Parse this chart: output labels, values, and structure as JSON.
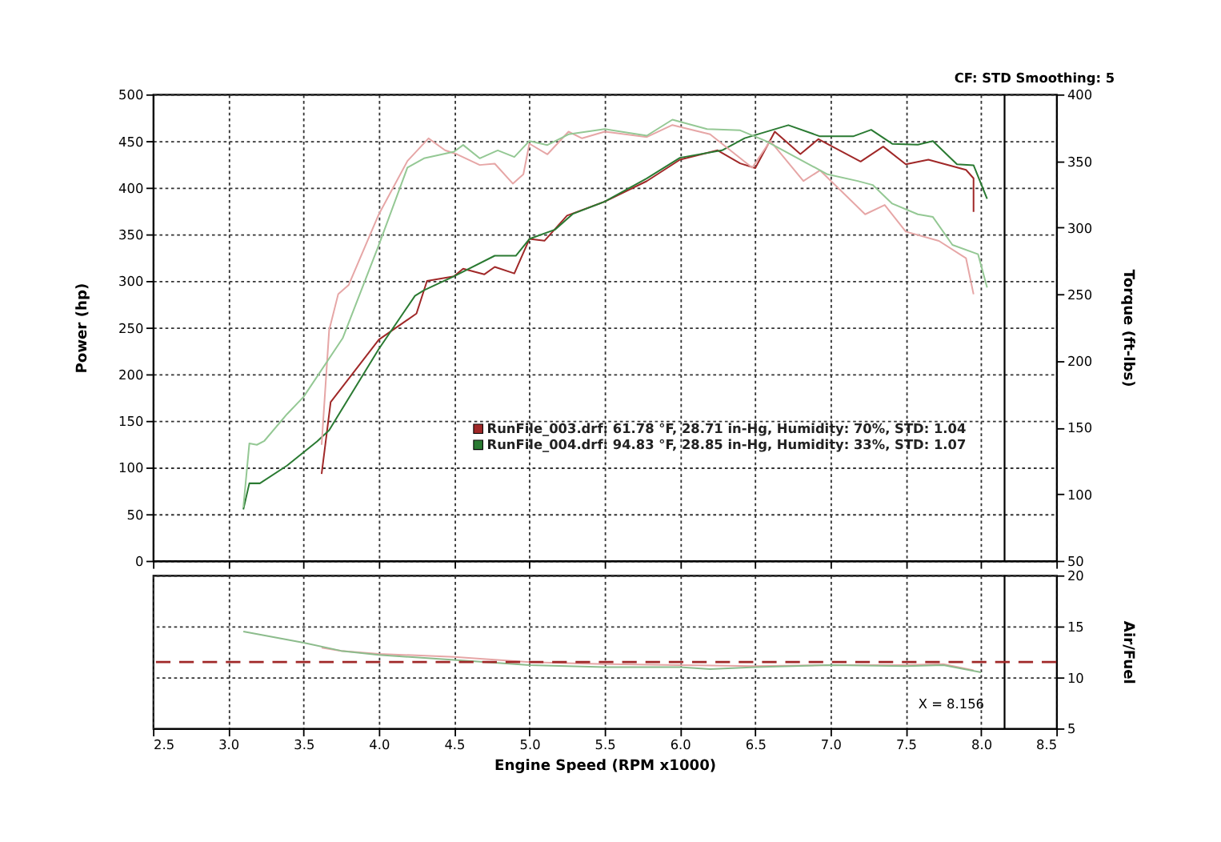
{
  "chart_data": [
    {
      "type": "line",
      "ylabel": "Power (hp)",
      "y2label": "Torque (ft-lbs)",
      "annotations": [
        "CF: STD  Smoothing: 5"
      ],
      "xlim": [
        2.5,
        8.5
      ],
      "xticks": [
        2.5,
        3,
        3.5,
        4,
        4.5,
        5,
        5.5,
        6,
        6.5,
        7,
        7.5,
        8,
        8.5
      ],
      "ylim": [
        0,
        500
      ],
      "yticks": [
        0,
        50,
        100,
        150,
        200,
        250,
        300,
        350,
        400,
        450,
        500
      ],
      "y2lim": [
        50,
        400
      ],
      "y2ticks": [
        50,
        100,
        150,
        200,
        250,
        300,
        350,
        400
      ],
      "tick_labels": "y",
      "grid": true,
      "legend": "bottom",
      "line_style": "solid",
      "series": [
        {
          "name": "RunFile_003.drf: 61.78 °F, 28.71 in-Hg, Humidity: 70%, STD: 1.04",
          "color": "#a02828",
          "x": [
            3.62,
            3.68,
            4.0,
            4.25,
            4.32,
            4.5,
            4.56,
            4.7,
            4.77,
            4.9,
            5.0,
            5.1,
            5.25,
            5.5,
            5.78,
            6.0,
            6.25,
            6.4,
            6.5,
            6.63,
            6.8,
            6.92,
            7.2,
            7.35,
            7.5,
            7.65,
            7.9,
            7.95,
            7.95
          ],
          "values": [
            93,
            170,
            237,
            265,
            300,
            305,
            313,
            307,
            315,
            308,
            345,
            343,
            370,
            385,
            407,
            430,
            440,
            426,
            421,
            460,
            436,
            452,
            428,
            444,
            425,
            430,
            419,
            410,
            374
          ]
        },
        {
          "name": "RunFile_004.drf: 94.83 °F, 28.85 in-Hg, Humidity: 33%, STD: 1.07",
          "color": "#2a7a32",
          "x": [
            3.1,
            3.14,
            3.21,
            3.39,
            3.59,
            3.67,
            4.0,
            4.24,
            4.3,
            4.5,
            4.77,
            4.91,
            5.0,
            5.17,
            5.29,
            5.5,
            5.78,
            6.0,
            6.28,
            6.43,
            6.72,
            6.93,
            7.15,
            7.27,
            7.41,
            7.58,
            7.68,
            7.84,
            7.95,
            8.04
          ],
          "values": [
            55,
            83,
            83,
            102,
            128,
            140,
            227,
            284,
            290,
            305,
            327,
            327,
            345,
            355,
            372,
            385,
            410,
            432,
            440,
            453,
            467,
            455,
            455,
            462,
            447,
            446,
            450,
            425,
            424,
            388
          ]
        },
        {
          "color": "#e6a6a6",
          "axis": "y2",
          "x": [
            3.62,
            3.67,
            3.73,
            3.8,
            4.0,
            4.19,
            4.33,
            4.44,
            4.52,
            4.67,
            4.77,
            4.89,
            4.96,
            5.0,
            5.12,
            5.26,
            5.35,
            5.5,
            5.78,
            5.95,
            6.2,
            6.48,
            6.6,
            6.82,
            6.93,
            7.23,
            7.36,
            7.5,
            7.72,
            7.9,
            7.95
          ],
          "values": [
            137,
            223,
            250,
            257,
            310,
            350,
            367,
            358,
            355,
            347,
            348,
            333,
            340,
            363,
            355,
            372,
            367,
            372,
            368,
            377,
            370,
            345,
            365,
            335,
            343,
            310,
            317,
            297,
            290,
            277,
            250
          ]
        },
        {
          "color": "#94c894",
          "axis": "y2",
          "x": [
            3.1,
            3.14,
            3.19,
            3.24,
            3.39,
            3.5,
            3.76,
            4.0,
            4.19,
            4.3,
            4.5,
            4.56,
            4.67,
            4.79,
            4.9,
            5.0,
            5.12,
            5.26,
            5.5,
            5.78,
            5.95,
            6.18,
            6.4,
            6.57,
            6.98,
            7.18,
            7.28,
            7.41,
            7.58,
            7.68,
            7.81,
            7.98,
            8.04
          ],
          "values": [
            90,
            138,
            137,
            140,
            160,
            173,
            217,
            287,
            345,
            352,
            357,
            362,
            352,
            358,
            353,
            365,
            362,
            370,
            374,
            369,
            381,
            374,
            373,
            365,
            340,
            335,
            332,
            318,
            310,
            308,
            287,
            280,
            255
          ]
        }
      ],
      "ref_lines": [
        {
          "axis": "x",
          "value": 8.156,
          "color": "#000000"
        }
      ]
    },
    {
      "type": "line",
      "xlabel": "Engine Speed (RPM x1000)",
      "ylabel": "Air/Fuel",
      "xlim": [
        2.5,
        8.5
      ],
      "xticks": [
        2.5,
        {
          "value": 3,
          "label": "3.0"
        },
        3.5,
        {
          "value": 4,
          "label": "4.0"
        },
        4.5,
        {
          "value": 5,
          "label": "5.0"
        },
        5.5,
        {
          "value": 6,
          "label": "6.0"
        },
        6.5,
        {
          "value": 7,
          "label": "7.0"
        },
        7.5,
        {
          "value": 8,
          "label": "8.0"
        },
        8.5
      ],
      "ylim": [
        5,
        20
      ],
      "yticks": [
        5,
        10,
        15,
        20
      ],
      "grid": true,
      "line_style": "solid",
      "series": [
        {
          "color": "#e6a6a6",
          "x": [
            3.62,
            3.75,
            4.0,
            4.5,
            5.0,
            5.5,
            6.0,
            6.5,
            7.0,
            7.5,
            7.75,
            7.95
          ],
          "values": [
            12.9,
            12.6,
            12.3,
            12.0,
            11.5,
            11.3,
            11.2,
            11.1,
            11.2,
            11.2,
            11.3,
            10.7
          ]
        },
        {
          "color": "#8cbc8c",
          "x": [
            3.1,
            3.5,
            3.75,
            4.0,
            4.5,
            5.0,
            5.5,
            6.0,
            6.2,
            6.5,
            7.0,
            7.5,
            7.75,
            8.0
          ],
          "values": [
            14.5,
            13.4,
            12.6,
            12.2,
            11.7,
            11.2,
            11.0,
            11.0,
            10.8,
            11.0,
            11.2,
            11.1,
            11.2,
            10.5
          ]
        }
      ],
      "ref_lines": [
        {
          "axis": "x",
          "value": 8.156,
          "label": "X = 8.156",
          "color": "#000000"
        },
        {
          "axis": "y",
          "value": 11.5,
          "color": "#a02828",
          "line_style": "dashed"
        }
      ]
    }
  ]
}
